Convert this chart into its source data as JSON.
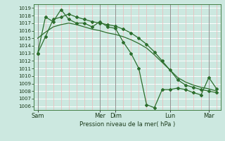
{
  "background_color": "#cce8e0",
  "grid_color_h": "#ffffff",
  "grid_color_v": "#f0b8b8",
  "line_color": "#2d6e2d",
  "xlabel": "Pression niveau de la mer( hPa )",
  "ylim": [
    1005.5,
    1019.5
  ],
  "yticks": [
    1006,
    1007,
    1008,
    1009,
    1010,
    1011,
    1012,
    1013,
    1014,
    1015,
    1016,
    1017,
    1018,
    1019
  ],
  "xtick_labels": [
    "Sam",
    "Mer",
    "Dim",
    "Lun",
    "Mar"
  ],
  "xtick_positions": [
    0,
    8,
    10,
    17,
    22
  ],
  "total_points": 24,
  "series1_x": [
    0,
    1,
    2,
    3,
    4,
    5,
    6,
    7,
    8,
    9,
    10,
    11,
    12,
    13,
    14,
    15,
    16,
    17,
    18,
    19,
    20,
    21,
    22,
    23
  ],
  "series1_y": [
    1013.0,
    1017.8,
    1017.2,
    1018.8,
    1017.5,
    1017.0,
    1017.0,
    1016.5,
    1017.2,
    1016.5,
    1016.3,
    1014.5,
    1013.0,
    1011.0,
    1006.2,
    1005.8,
    1008.2,
    1008.2,
    1008.4,
    1008.2,
    1007.8,
    1007.5,
    1009.8,
    1008.3
  ],
  "series2_x": [
    0,
    1,
    2,
    3,
    4,
    5,
    6,
    7,
    8,
    9,
    10,
    11,
    12,
    13,
    14,
    15,
    16,
    17,
    18,
    19,
    20,
    21,
    22,
    23
  ],
  "series2_y": [
    1015.0,
    1015.8,
    1016.5,
    1016.8,
    1017.0,
    1016.8,
    1016.5,
    1016.2,
    1016.0,
    1015.7,
    1015.5,
    1015.2,
    1014.8,
    1014.3,
    1013.7,
    1012.8,
    1011.8,
    1010.8,
    1009.8,
    1009.2,
    1008.8,
    1008.5,
    1008.3,
    1008.0
  ],
  "series3_x": [
    0,
    1,
    2,
    3,
    4,
    5,
    6,
    7,
    8,
    9,
    10,
    11,
    12,
    13,
    14,
    15,
    16,
    17,
    18,
    19,
    20,
    21,
    22,
    23
  ],
  "series3_y": [
    1013.0,
    1015.2,
    1017.5,
    1017.8,
    1018.2,
    1017.8,
    1017.5,
    1017.2,
    1017.0,
    1016.8,
    1016.6,
    1016.2,
    1015.7,
    1015.0,
    1014.2,
    1013.2,
    1012.0,
    1010.8,
    1009.5,
    1008.8,
    1008.5,
    1008.2,
    1008.0,
    1007.8
  ],
  "ylabel_fontsize": 6,
  "ytick_fontsize": 5,
  "xtick_fontsize": 6
}
